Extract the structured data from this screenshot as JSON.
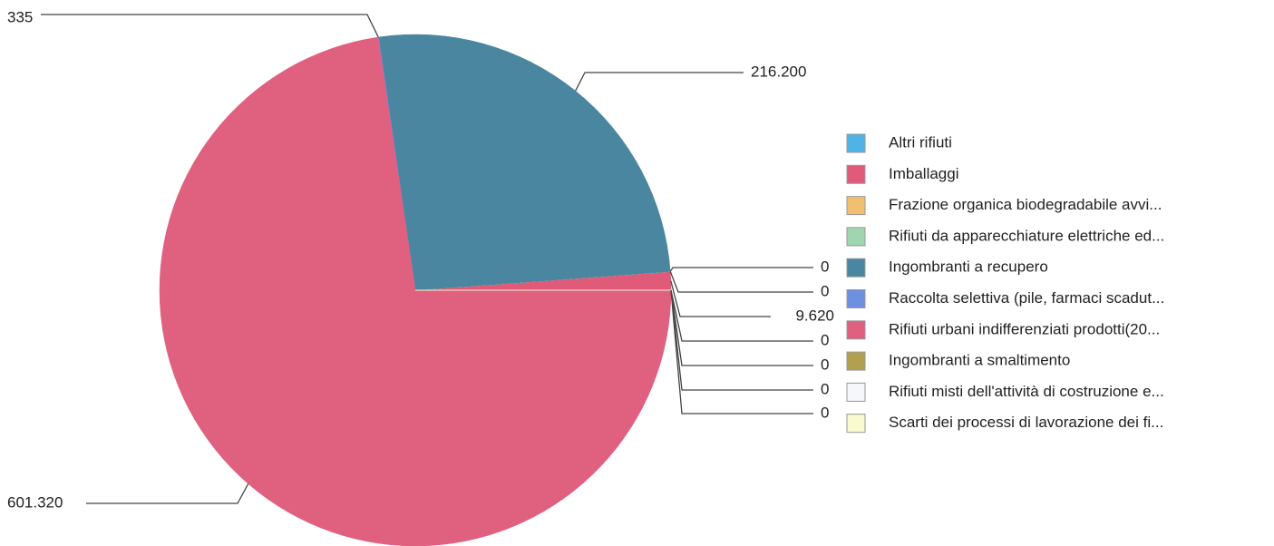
{
  "chart_data": {
    "type": "pie",
    "categories": [
      "Altri rifiuti",
      "Imballaggi",
      "Frazione organica biodegradabile avvi...",
      "Rifiuti da apparecchiature elettriche ed...",
      "Ingombranti a recupero",
      "Raccolta selettiva (pile, farmaci scadut...",
      "Rifiuti urbani indifferenziati prodotti(20...",
      "Ingombranti a smaltimento",
      "Rifiuti misti dell'attività di costruzione e...",
      "Scarti dei processi di lavorazione dei fi..."
    ],
    "values": [
      0,
      9620,
      0,
      0,
      216200,
      335,
      601320,
      0,
      0,
      0
    ],
    "value_labels": [
      "0",
      "9.620",
      "0",
      "0",
      "216.200",
      "335",
      "601.320",
      "0",
      "0",
      "0"
    ],
    "colors": [
      "#4fb3e6",
      "#e05a7a",
      "#f0c070",
      "#9fd6b0",
      "#4a86a0",
      "#6f8fe0",
      "#e06080",
      "#b0a050",
      "#f5f7fa",
      "#fafad0"
    ],
    "direction": "counterclockwise",
    "legend": "right"
  }
}
